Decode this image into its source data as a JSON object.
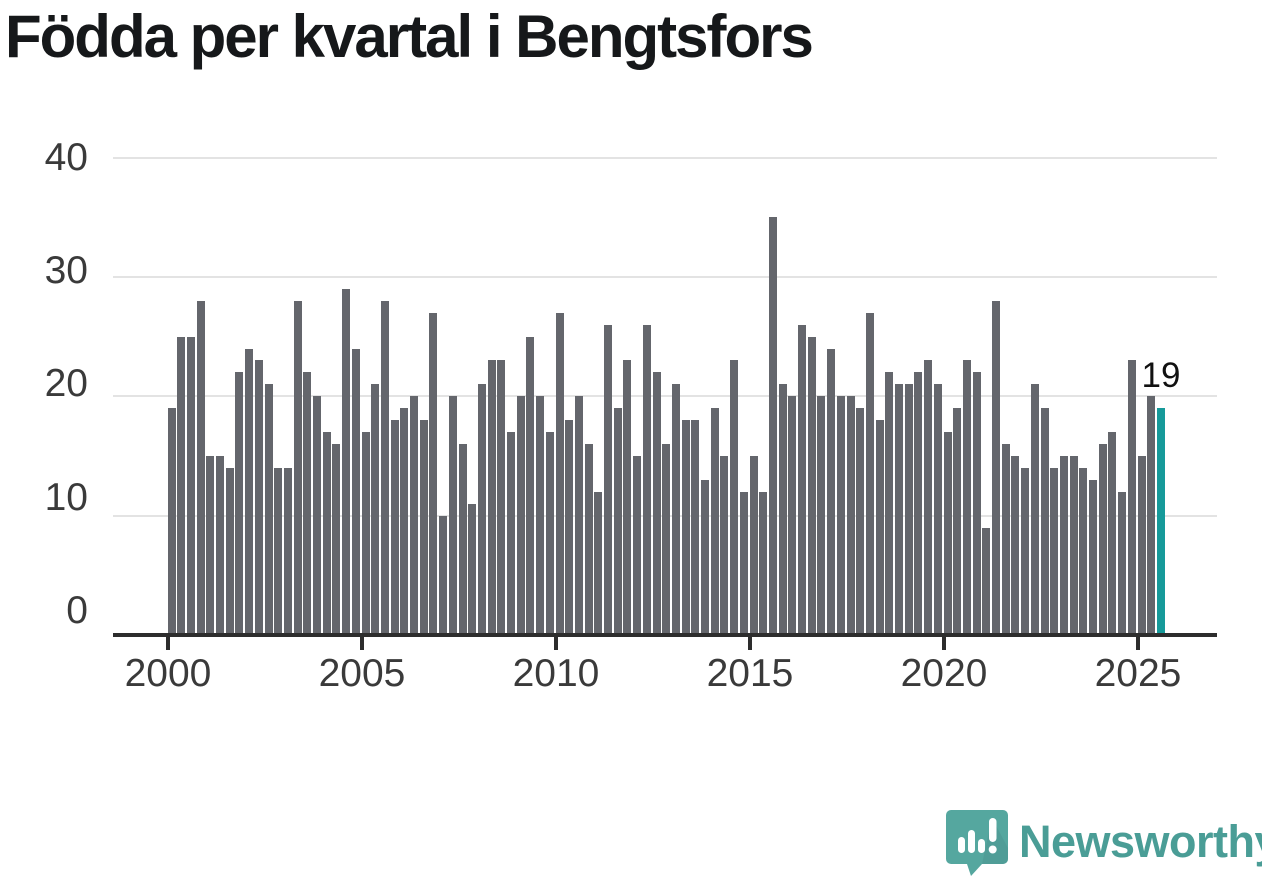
{
  "title": "Födda per kvartal i Bengtsfors",
  "annotation": {
    "last_value_label": "19"
  },
  "branding": {
    "name": "Newsworthy",
    "icon": "newsworthy-speech-bubble-bar-chart-icon"
  },
  "colors": {
    "bar": "#64666c",
    "highlight_bar": "#169a9a",
    "gridline": "#e3e3e3",
    "axis": "#2d2d2d",
    "tick_label": "#3a3a3a",
    "title_text": "#16181a",
    "brand_teal": "#4a9d96",
    "brand_icon_teal": "#55a79f"
  },
  "chart_data": {
    "type": "bar",
    "title": "Födda per kvartal i Bengtsfors",
    "xlabel": "",
    "ylabel": "",
    "x_unit": "quarter",
    "start_quarter": "2000Q1",
    "end_quarter": "2025Q3",
    "x_tick_labels": [
      "2000",
      "2005",
      "2010",
      "2015",
      "2020",
      "2025"
    ],
    "y_ticks": [
      0,
      10,
      20,
      30,
      40
    ],
    "ylim": [
      0,
      40
    ],
    "grid": "horizontal",
    "legend": "none",
    "highlight_last_bar": true,
    "last_bar_value_label": "19",
    "values": [
      19,
      25,
      25,
      28,
      15,
      15,
      14,
      22,
      24,
      23,
      21,
      14,
      14,
      28,
      22,
      20,
      17,
      16,
      29,
      24,
      17,
      21,
      28,
      18,
      19,
      20,
      18,
      27,
      10,
      20,
      16,
      11,
      21,
      23,
      23,
      17,
      20,
      25,
      20,
      17,
      27,
      18,
      20,
      16,
      12,
      26,
      19,
      23,
      15,
      26,
      22,
      16,
      21,
      18,
      18,
      13,
      19,
      15,
      23,
      12,
      15,
      12,
      35,
      21,
      20,
      26,
      25,
      20,
      24,
      20,
      20,
      19,
      27,
      18,
      22,
      21,
      21,
      22,
      23,
      21,
      17,
      19,
      23,
      22,
      9,
      28,
      16,
      15,
      14,
      21,
      19,
      14,
      15,
      15,
      14,
      13,
      16,
      17,
      12,
      23,
      15,
      20,
      19
    ]
  }
}
